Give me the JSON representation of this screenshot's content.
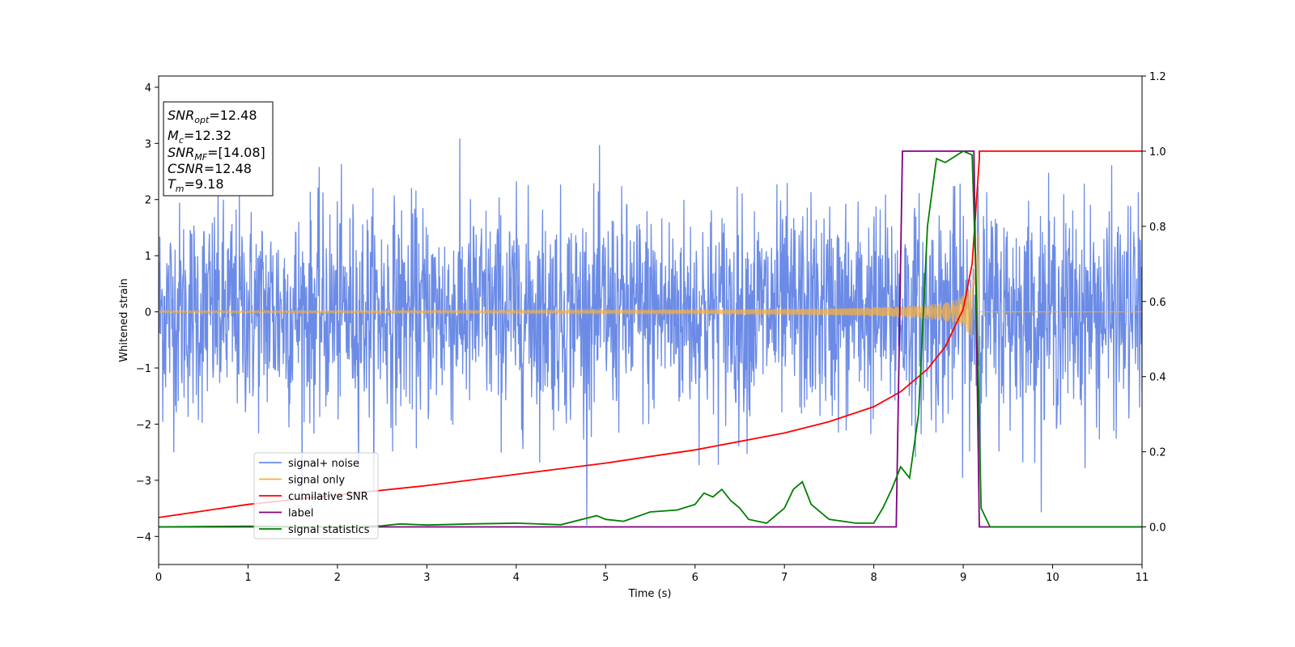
{
  "chart_data": {
    "type": "line",
    "xlabel": "Time (s)",
    "ylabel": "Whitened strain",
    "xlim": [
      0,
      11
    ],
    "ylim_left": [
      -4.5,
      4.2
    ],
    "ylim_right": [
      -0.1,
      1.2
    ],
    "x_ticks": [
      0,
      1,
      2,
      3,
      4,
      5,
      6,
      7,
      8,
      9,
      10,
      11
    ],
    "x_tick_labels": [
      "0",
      "1",
      "2",
      "3",
      "4",
      "5",
      "6",
      "7",
      "8",
      "9",
      "10",
      "11"
    ],
    "y_left_ticks": [
      4,
      3,
      2,
      1,
      0,
      -1,
      -2,
      -3,
      -4
    ],
    "y_left_tick_labels": [
      "4",
      "3",
      "2",
      "1",
      "0",
      "−1",
      "−2",
      "−3",
      "−4"
    ],
    "y_right_ticks": [
      1.2,
      1.0,
      0.8,
      0.6,
      0.4,
      0.2,
      0.0
    ],
    "y_right_tick_labels": [
      "1.2",
      "1.0",
      "0.8",
      "0.6",
      "0.4",
      "0.2",
      "0.0"
    ],
    "grid": false,
    "legend_position": "lower-left",
    "series": [
      {
        "name": "signal+ noise",
        "color": "#6b8be6",
        "axis": "left",
        "kind": "noise",
        "std": 0.95,
        "max_abs": 3.8
      },
      {
        "name": "signal only",
        "color": "#f5b041",
        "axis": "left",
        "kind": "chirp",
        "merge_time": 9.18,
        "amp_peak": 1.6
      },
      {
        "name": "cumilative SNR",
        "color": "#ff0000",
        "axis": "right",
        "x": [
          0,
          1,
          2,
          3,
          4,
          5,
          6,
          7,
          7.5,
          8,
          8.3,
          8.6,
          8.8,
          9.0,
          9.1,
          9.18,
          9.18,
          11
        ],
        "y": [
          0.025,
          0.06,
          0.085,
          0.11,
          0.14,
          0.17,
          0.205,
          0.25,
          0.28,
          0.32,
          0.36,
          0.42,
          0.48,
          0.58,
          0.7,
          0.98,
          1.0,
          1.0
        ]
      },
      {
        "name": "label",
        "color": "#800080",
        "axis": "right",
        "x": [
          0,
          8.25,
          8.32,
          9.12,
          9.18,
          11
        ],
        "y": [
          0,
          0,
          1,
          1,
          0,
          0
        ]
      },
      {
        "name": "signal statistics",
        "color": "#008000",
        "axis": "right",
        "x": [
          0,
          1,
          2,
          2.5,
          2.7,
          3,
          3.5,
          4,
          4.5,
          4.9,
          5,
          5.2,
          5.5,
          5.8,
          6,
          6.1,
          6.2,
          6.3,
          6.4,
          6.5,
          6.6,
          6.8,
          7.0,
          7.1,
          7.2,
          7.3,
          7.5,
          7.8,
          8.0,
          8.1,
          8.2,
          8.3,
          8.4,
          8.5,
          8.6,
          8.7,
          8.8,
          9.0,
          9.1,
          9.15,
          9.2,
          9.3,
          11
        ],
        "y": [
          0.0,
          0.002,
          0.0,
          0.003,
          0.008,
          0.005,
          0.008,
          0.01,
          0.006,
          0.03,
          0.02,
          0.015,
          0.04,
          0.045,
          0.06,
          0.09,
          0.08,
          0.1,
          0.07,
          0.05,
          0.02,
          0.01,
          0.05,
          0.1,
          0.12,
          0.06,
          0.02,
          0.01,
          0.01,
          0.05,
          0.1,
          0.16,
          0.13,
          0.3,
          0.8,
          0.98,
          0.97,
          1.0,
          0.99,
          0.6,
          0.05,
          0.0,
          0.0
        ]
      }
    ],
    "info_box": [
      {
        "main": "SNR",
        "sub": "opt",
        "rest": "=12.48"
      },
      {
        "main": "M",
        "sub": "c",
        "rest": "=12.32"
      },
      {
        "main": "SNR",
        "sub": "MF",
        "rest": "=[14.08]"
      },
      {
        "main": "CSNR",
        "sub": "",
        "rest": "=12.48"
      },
      {
        "main": "T",
        "sub": "m",
        "rest": "=9.18"
      }
    ]
  }
}
